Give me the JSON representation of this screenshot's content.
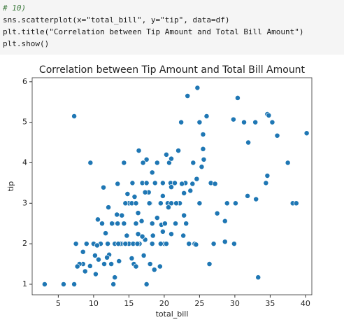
{
  "code": [
    "# 10)",
    "sns.scatterplot(x=\"total_bill\", y=\"tip\", data=df)",
    "plt.title(\"Correlation between Tip Amount and Total Bill Amount\")",
    "plt.show()"
  ],
  "chart_data": {
    "type": "scatter",
    "title": "Correlation between Tip Amount and Total Bill Amount",
    "xlabel": "total_bill",
    "ylabel": "tip",
    "color": "#1f77b4",
    "xlim": [
      1.3,
      40.9
    ],
    "ylim": [
      0.74,
      6.1
    ],
    "xticks": [
      5,
      10,
      15,
      20,
      25,
      30,
      35,
      40
    ],
    "yticks": [
      1,
      2,
      3,
      4,
      5,
      6
    ],
    "x": [
      3.07,
      5.75,
      7.25,
      7.25,
      9.55,
      7.5,
      8.5,
      23.3,
      24.7,
      30.4,
      34.6,
      34.8,
      26,
      25.5,
      29.8,
      31.3,
      32.9,
      35.3,
      40.17,
      36,
      22.4,
      25,
      31.9,
      37.5,
      34.4,
      34.6,
      31.8,
      33,
      38.2,
      38.7,
      28.9,
      30.1,
      33.3,
      28.6,
      29.9,
      27,
      26.4,
      28.6,
      17.5,
      12.8,
      13,
      18.6,
      10.3,
      25.5,
      25.6,
      24.6,
      23.7,
      22.8,
      20.9,
      22,
      20.7,
      20.3,
      16.4,
      17.5,
      14.3,
      16.9,
      15.5,
      13.4,
      11.4,
      15,
      15.4,
      16,
      18,
      19.5,
      20.5,
      21,
      22.2,
      25,
      16.3,
      17.9,
      19.8,
      21.5,
      23,
      24,
      14,
      13.3,
      12.7,
      13.4,
      14.3,
      16,
      18.3,
      19.8,
      21,
      22.7,
      24.3,
      24.5,
      20,
      18.3,
      16.5,
      15,
      14,
      13,
      12,
      11,
      10,
      9,
      8.5,
      10.5,
      11.5,
      12.5,
      13.6,
      15.4,
      15.7,
      17.1,
      16,
      10.2,
      9.5,
      8.8,
      8,
      7.7,
      12.2,
      11.9,
      10.7,
      13.8,
      14.5,
      15.6,
      17.3,
      18.4,
      19.5,
      21.6,
      23.1,
      23.5,
      21,
      19.8,
      18.7,
      18.3,
      17.8,
      17.3,
      19.6,
      20.1,
      20.6,
      22.8,
      15.8,
      14.8,
      14.5,
      12.6,
      12.1,
      11.7,
      11.2,
      10.6,
      17,
      19,
      21,
      24.1,
      25.3,
      26.6,
      27.2,
      27.5,
      17.5,
      16.8,
      16.3,
      14.7,
      16.9,
      19.4,
      18,
      20.3,
      19,
      21.7,
      22.5,
      16.2,
      13.5
    ],
    "values": [
      1,
      1,
      1,
      5.15,
      4,
      2,
      1.5,
      5.65,
      5.85,
      5.6,
      5.2,
      5.17,
      5.15,
      4.7,
      5.07,
      5,
      5,
      5,
      4.73,
      4.67,
      5,
      5,
      4.5,
      4,
      3.5,
      3.68,
      3.18,
      3.1,
      3,
      3,
      3,
      3,
      1.17,
      2.05,
      2,
      2,
      1.5,
      2.56,
      1,
      1,
      1.17,
      1.36,
      1.25,
      4.34,
      4.08,
      3.6,
      3.31,
      3.25,
      3.5,
      4.3,
      4,
      4.2,
      4.3,
      4.08,
      4,
      3.5,
      3.5,
      3.48,
      3.39,
      3,
      3,
      3,
      3,
      3,
      3,
      3,
      3,
      3,
      2.76,
      3,
      3.18,
      3.5,
      3.5,
      3.48,
      2.7,
      2.72,
      2.5,
      2.5,
      2.5,
      2.5,
      2.5,
      2.3,
      2.24,
      2.2,
      2,
      1.98,
      2,
      2,
      2,
      2,
      2,
      2,
      2,
      2,
      2,
      2,
      1.8,
      1.96,
      1.5,
      1.5,
      1.57,
      1.64,
      1.5,
      1.71,
      1.44,
      1.71,
      1.45,
      1.32,
      1.5,
      1.44,
      1.73,
      1.66,
      1.61,
      2,
      2,
      2,
      2.1,
      2.2,
      2,
      2.5,
      2.5,
      2,
      3.4,
      3.5,
      3.5,
      3.76,
      3.27,
      3.27,
      2.47,
      2.5,
      2.9,
      2.7,
      3.16,
      3.23,
      3,
      2.5,
      2.9,
      2.26,
      2.5,
      2.6,
      4,
      4,
      4.1,
      4,
      3.9,
      3.5,
      3.48,
      2.75,
      3.5,
      2.56,
      2.24,
      2.2,
      2.18,
      1.44,
      1.5,
      2,
      2.64,
      3,
      3.48,
      2,
      2
    ]
  }
}
